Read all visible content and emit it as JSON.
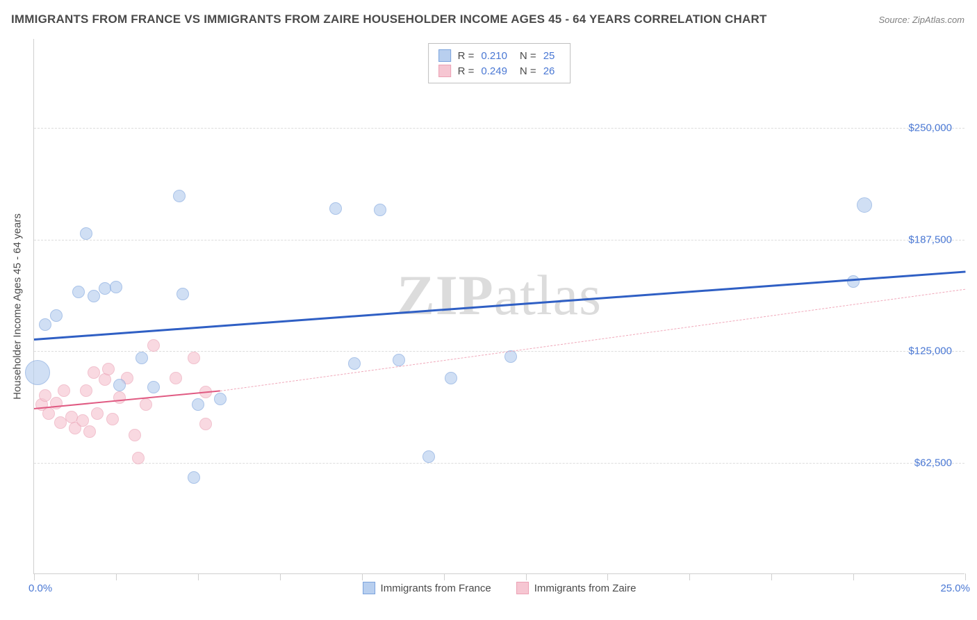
{
  "title": "IMMIGRANTS FROM FRANCE VS IMMIGRANTS FROM ZAIRE HOUSEHOLDER INCOME AGES 45 - 64 YEARS CORRELATION CHART",
  "source": "Source: ZipAtlas.com",
  "watermark_bold": "ZIP",
  "watermark_rest": "atlas",
  "chart": {
    "type": "scatter",
    "y_axis_title": "Householder Income Ages 45 - 64 years",
    "xlim": [
      0,
      25
    ],
    "ylim": [
      0,
      300000
    ],
    "x_ticks": [
      0,
      2.2,
      4.4,
      6.6,
      8.8,
      11.0,
      13.2,
      15.4,
      17.6,
      19.8,
      22.0,
      25.0
    ],
    "x_label_min": "0.0%",
    "x_label_max": "25.0%",
    "y_gridlines": [
      62500,
      125000,
      187500,
      250000
    ],
    "y_labels": [
      "$62,500",
      "$125,000",
      "$187,500",
      "$250,000"
    ],
    "background_color": "#ffffff",
    "grid_color": "#dcdcdc",
    "axis_color": "#cfcfcf",
    "tick_label_color": "#4a78d4",
    "label_fontsize": 15,
    "title_fontsize": 17,
    "title_color": "#4a4a4a"
  },
  "series": [
    {
      "name": "Immigrants from France",
      "key": "france",
      "fill": "#b8cfef",
      "stroke": "#7ba3dd",
      "fill_opacity": 0.65,
      "marker_radius": 9,
      "trend": {
        "x1": 0,
        "y1": 132000,
        "x2": 25,
        "y2": 170000,
        "color": "#2f5fc4",
        "width": 3,
        "dashed": false
      },
      "trend_extrap": null,
      "R": "0.210",
      "N": "25",
      "points": [
        {
          "x": 0.1,
          "y": 113000,
          "r": 18
        },
        {
          "x": 0.3,
          "y": 140000,
          "r": 9
        },
        {
          "x": 0.6,
          "y": 145000,
          "r": 9
        },
        {
          "x": 1.2,
          "y": 158000,
          "r": 9
        },
        {
          "x": 1.4,
          "y": 191000,
          "r": 9
        },
        {
          "x": 1.6,
          "y": 156000,
          "r": 9
        },
        {
          "x": 1.9,
          "y": 160000,
          "r": 9
        },
        {
          "x": 2.2,
          "y": 161000,
          "r": 9
        },
        {
          "x": 2.3,
          "y": 106000,
          "r": 9
        },
        {
          "x": 2.9,
          "y": 121000,
          "r": 9
        },
        {
          "x": 3.2,
          "y": 105000,
          "r": 9
        },
        {
          "x": 3.9,
          "y": 212000,
          "r": 9
        },
        {
          "x": 4.0,
          "y": 157000,
          "r": 9
        },
        {
          "x": 4.3,
          "y": 54000,
          "r": 9
        },
        {
          "x": 4.4,
          "y": 95000,
          "r": 9
        },
        {
          "x": 5.0,
          "y": 98000,
          "r": 9
        },
        {
          "x": 8.1,
          "y": 205000,
          "r": 9
        },
        {
          "x": 8.6,
          "y": 118000,
          "r": 9
        },
        {
          "x": 9.3,
          "y": 204000,
          "r": 9
        },
        {
          "x": 9.8,
          "y": 120000,
          "r": 9
        },
        {
          "x": 10.6,
          "y": 66000,
          "r": 9
        },
        {
          "x": 11.2,
          "y": 110000,
          "r": 9
        },
        {
          "x": 12.8,
          "y": 122000,
          "r": 9
        },
        {
          "x": 22.0,
          "y": 164000,
          "r": 9
        },
        {
          "x": 22.3,
          "y": 207000,
          "r": 11
        }
      ]
    },
    {
      "name": "Immigrants from Zaire",
      "key": "zaire",
      "fill": "#f6c6d2",
      "stroke": "#eba1b4",
      "fill_opacity": 0.65,
      "marker_radius": 9,
      "trend": {
        "x1": 0,
        "y1": 93000,
        "x2": 5.0,
        "y2": 103000,
        "color": "#e05a82",
        "width": 2.5,
        "dashed": false
      },
      "trend_extrap": {
        "x1": 5.0,
        "y1": 103000,
        "x2": 25,
        "y2": 160000,
        "color": "#f0a8ba",
        "width": 1.2,
        "dashed": true
      },
      "R": "0.249",
      "N": "26",
      "points": [
        {
          "x": 0.2,
          "y": 95000,
          "r": 9
        },
        {
          "x": 0.3,
          "y": 100000,
          "r": 9
        },
        {
          "x": 0.4,
          "y": 90000,
          "r": 9
        },
        {
          "x": 0.6,
          "y": 96000,
          "r": 9
        },
        {
          "x": 0.7,
          "y": 85000,
          "r": 9
        },
        {
          "x": 0.8,
          "y": 103000,
          "r": 9
        },
        {
          "x": 1.0,
          "y": 88000,
          "r": 9
        },
        {
          "x": 1.1,
          "y": 82000,
          "r": 9
        },
        {
          "x": 1.3,
          "y": 86000,
          "r": 9
        },
        {
          "x": 1.4,
          "y": 103000,
          "r": 9
        },
        {
          "x": 1.5,
          "y": 80000,
          "r": 9
        },
        {
          "x": 1.6,
          "y": 113000,
          "r": 9
        },
        {
          "x": 1.7,
          "y": 90000,
          "r": 9
        },
        {
          "x": 1.9,
          "y": 109000,
          "r": 9
        },
        {
          "x": 2.0,
          "y": 115000,
          "r": 9
        },
        {
          "x": 2.1,
          "y": 87000,
          "r": 9
        },
        {
          "x": 2.3,
          "y": 99000,
          "r": 9
        },
        {
          "x": 2.5,
          "y": 110000,
          "r": 9
        },
        {
          "x": 2.7,
          "y": 78000,
          "r": 9
        },
        {
          "x": 2.8,
          "y": 65000,
          "r": 9
        },
        {
          "x": 3.0,
          "y": 95000,
          "r": 9
        },
        {
          "x": 3.2,
          "y": 128000,
          "r": 9
        },
        {
          "x": 3.8,
          "y": 110000,
          "r": 9
        },
        {
          "x": 4.3,
          "y": 121000,
          "r": 9
        },
        {
          "x": 4.6,
          "y": 84000,
          "r": 9
        },
        {
          "x": 4.6,
          "y": 102000,
          "r": 9
        }
      ]
    }
  ],
  "legend_top": {
    "r_label": "R =",
    "n_label": "N ="
  },
  "legend_bottom_labels": [
    "Immigrants from France",
    "Immigrants from Zaire"
  ]
}
